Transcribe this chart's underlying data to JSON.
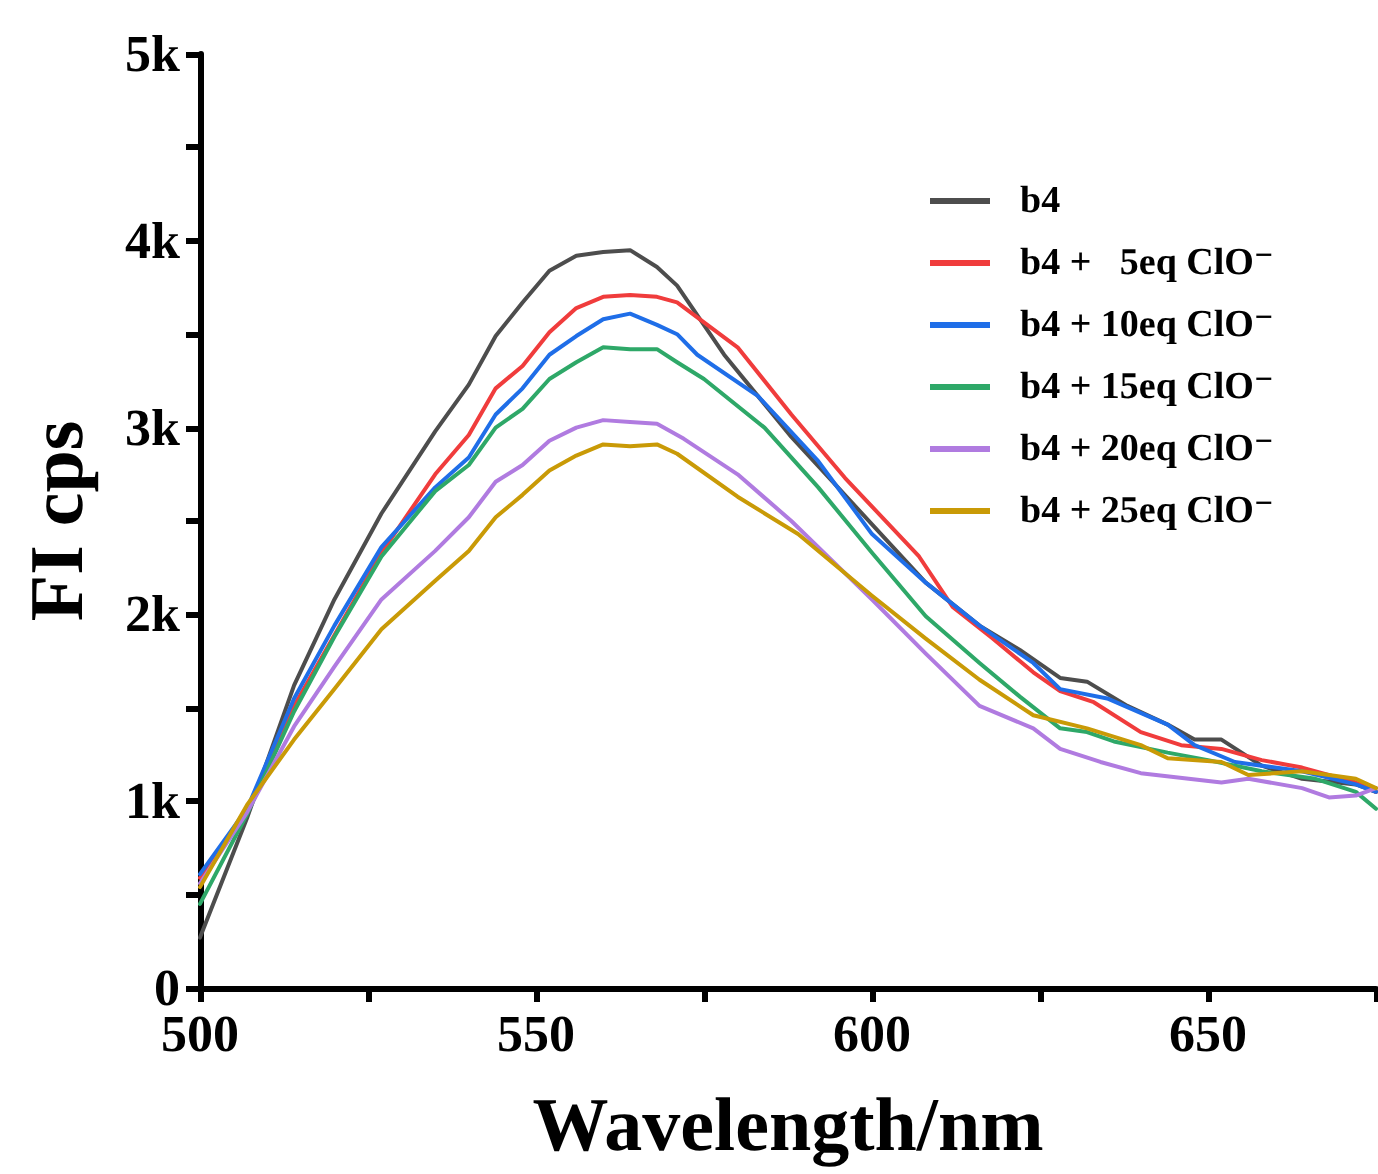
{
  "chart_data": {
    "type": "line",
    "xlabel": "Wavelength/nm",
    "ylabel": "FI cps",
    "xlim": [
      500,
      675
    ],
    "ylim": [
      0,
      5000
    ],
    "xticks": [
      500,
      {
        "value": 525,
        "label": null
      },
      550,
      {
        "value": 575,
        "label": null
      },
      600,
      {
        "value": 625,
        "label": null
      },
      650,
      {
        "value": 675,
        "label": null
      }
    ],
    "yticks": [
      {
        "value": 0,
        "label": "0"
      },
      {
        "value": 500,
        "label": null
      },
      {
        "value": 1000,
        "label": "1k"
      },
      {
        "value": 1500,
        "label": null
      },
      {
        "value": 2000,
        "label": "2k"
      },
      {
        "value": 2500,
        "label": null
      },
      {
        "value": 3000,
        "label": "3k"
      },
      {
        "value": 3500,
        "label": null
      },
      {
        "value": 4000,
        "label": "4k"
      },
      {
        "value": 4500,
        "label": null
      },
      {
        "value": 5000,
        "label": "5k"
      }
    ],
    "grid": false,
    "legend": "top right",
    "marker": "none",
    "line_style": "solid",
    "series": [
      {
        "name": "b4",
        "color": "#4d4d4d",
        "x": [
          500,
          507,
          514,
          520,
          527,
          535,
          540,
          544,
          548,
          552,
          556,
          560,
          564,
          568,
          571,
          578,
          588,
          608,
          616,
          622,
          628,
          632,
          638,
          644,
          648,
          652,
          658,
          664,
          672,
          675
        ],
        "values": [
          270,
          910,
          1620,
          2080,
          2540,
          2980,
          3230,
          3490,
          3670,
          3840,
          3920,
          3940,
          3950,
          3860,
          3760,
          3390,
          2950,
          2170,
          1940,
          1810,
          1660,
          1640,
          1510,
          1410,
          1330,
          1330,
          1190,
          1120,
          1090,
          1050
        ]
      },
      {
        "name": "b4 +   5eq ClO⁻",
        "color": "#f03c3c",
        "x": [
          500,
          507,
          514,
          527,
          535,
          540,
          544,
          548,
          552,
          556,
          560,
          564,
          568,
          571,
          580,
          588,
          596,
          607,
          612,
          618,
          624,
          628,
          633,
          640,
          646,
          652,
          658,
          664,
          672,
          675
        ],
        "values": [
          590,
          950,
          1510,
          2330,
          2750,
          2960,
          3210,
          3330,
          3510,
          3640,
          3700,
          3710,
          3700,
          3670,
          3430,
          3070,
          2730,
          2310,
          2040,
          1870,
          1690,
          1590,
          1530,
          1370,
          1300,
          1280,
          1220,
          1180,
          1100,
          1050
        ]
      },
      {
        "name": "b4 + 10eq ClO⁻",
        "color": "#1f6ee8",
        "x": [
          500,
          507,
          514,
          520,
          527,
          535,
          540,
          544,
          548,
          552,
          556,
          560,
          564,
          568,
          571,
          574,
          583,
          592,
          600,
          608,
          616,
          624,
          628,
          635,
          644,
          648,
          654,
          664,
          672,
          675
        ],
        "values": [
          610,
          960,
          1550,
          1940,
          2360,
          2680,
          2840,
          3070,
          3210,
          3390,
          3490,
          3580,
          3610,
          3550,
          3500,
          3390,
          3170,
          2820,
          2430,
          2170,
          1940,
          1740,
          1600,
          1550,
          1410,
          1300,
          1210,
          1160,
          1090,
          1050
        ]
      },
      {
        "name": "b4 + 15eq ClO⁻",
        "color": "#2ea868",
        "x": [
          500,
          507,
          514,
          520,
          527,
          535,
          540,
          544,
          548,
          552,
          556,
          560,
          564,
          568,
          571,
          575,
          584,
          592,
          600,
          608,
          616,
          622,
          628,
          632,
          636,
          644,
          650,
          658,
          666,
          672,
          675
        ],
        "values": [
          450,
          930,
          1480,
          1880,
          2310,
          2660,
          2800,
          3000,
          3100,
          3260,
          3350,
          3430,
          3420,
          3420,
          3350,
          3260,
          3000,
          2680,
          2330,
          1990,
          1740,
          1560,
          1390,
          1370,
          1320,
          1260,
          1220,
          1160,
          1120,
          1050,
          960
        ]
      },
      {
        "name": "b4 + 20eq ClO⁻",
        "color": "#b07be0",
        "x": [
          500,
          507,
          514,
          520,
          527,
          535,
          540,
          544,
          548,
          552,
          556,
          560,
          564,
          568,
          572,
          580,
          588,
          592,
          600,
          608,
          616,
          624,
          628,
          634,
          640,
          652,
          656,
          664,
          668,
          672,
          675
        ],
        "values": [
          560,
          940,
          1400,
          1720,
          2080,
          2340,
          2520,
          2710,
          2800,
          2930,
          3000,
          3040,
          3030,
          3020,
          2940,
          2750,
          2500,
          2360,
          2080,
          1790,
          1510,
          1390,
          1280,
          1210,
          1150,
          1100,
          1120,
          1070,
          1020,
          1030,
          1070
        ]
      },
      {
        "name": "b4 + 25eq ClO⁻",
        "color": "#c99a06",
        "x": [
          500,
          507,
          514,
          520,
          527,
          535,
          540,
          544,
          548,
          552,
          556,
          560,
          564,
          568,
          571,
          580,
          589,
          600,
          608,
          616,
          624,
          632,
          640,
          644,
          652,
          656,
          664,
          672,
          675
        ],
        "values": [
          540,
          980,
          1330,
          1600,
          1920,
          2180,
          2340,
          2520,
          2640,
          2770,
          2850,
          2910,
          2900,
          2910,
          2860,
          2630,
          2430,
          2100,
          1870,
          1650,
          1460,
          1390,
          1300,
          1230,
          1210,
          1140,
          1160,
          1120,
          1070
        ]
      }
    ]
  }
}
